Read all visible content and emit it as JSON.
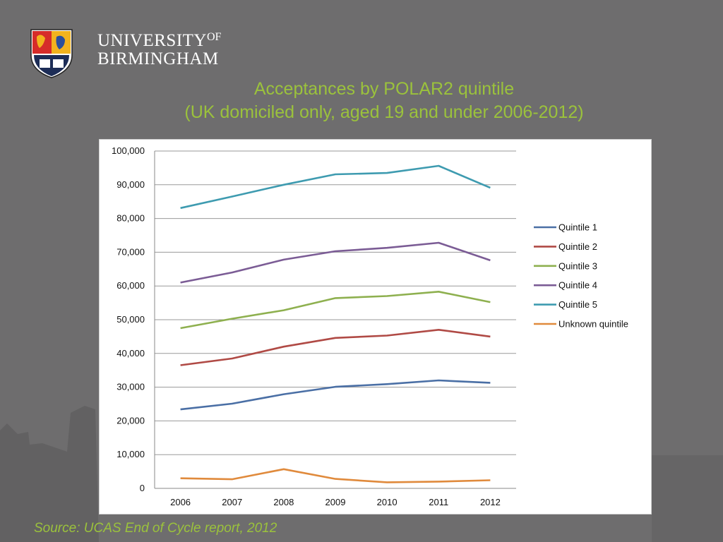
{
  "header": {
    "university_line1": "UNIVERSITY",
    "university_of": "OF",
    "university_line2": "BIRMINGHAM"
  },
  "slide": {
    "title_line1": "Acceptances by POLAR2 quintile",
    "title_line2": "(UK domiciled only, aged 19 and under 2006-2012)",
    "source": "Source: UCAS End of Cycle report, 2012"
  },
  "colors": {
    "background": "#6e6d6e",
    "accent_green": "#9bc23c"
  },
  "chart_data": {
    "type": "line",
    "title": "",
    "xlabel": "",
    "ylabel": "",
    "x": [
      "2006",
      "2007",
      "2008",
      "2009",
      "2010",
      "2011",
      "2012"
    ],
    "ylim": [
      0,
      100000
    ],
    "yticks": [
      "0",
      "10,000",
      "20,000",
      "30,000",
      "40,000",
      "50,000",
      "60,000",
      "70,000",
      "80,000",
      "90,000",
      "100,000"
    ],
    "grid": true,
    "legend_position": "right",
    "series": [
      {
        "name": "Quintile 1",
        "color": "#4a6fa5",
        "values": [
          23400,
          25100,
          27900,
          30100,
          30900,
          32000,
          31300
        ]
      },
      {
        "name": "Quintile 2",
        "color": "#b04a45",
        "values": [
          36500,
          38500,
          42000,
          44600,
          45300,
          47000,
          45000
        ]
      },
      {
        "name": "Quintile 3",
        "color": "#8eb04f",
        "values": [
          47500,
          50300,
          52800,
          56400,
          57000,
          58300,
          55200
        ]
      },
      {
        "name": "Quintile 4",
        "color": "#7b5c95",
        "values": [
          61000,
          64000,
          67800,
          70300,
          71300,
          72800,
          67600
        ]
      },
      {
        "name": "Quintile 5",
        "color": "#3e9bb0",
        "values": [
          83100,
          86500,
          90000,
          93100,
          93500,
          95600,
          89100
        ]
      },
      {
        "name": "Unknown quintile",
        "color": "#e08a3c",
        "values": [
          3000,
          2700,
          5700,
          2800,
          1800,
          2000,
          2400
        ]
      }
    ]
  }
}
